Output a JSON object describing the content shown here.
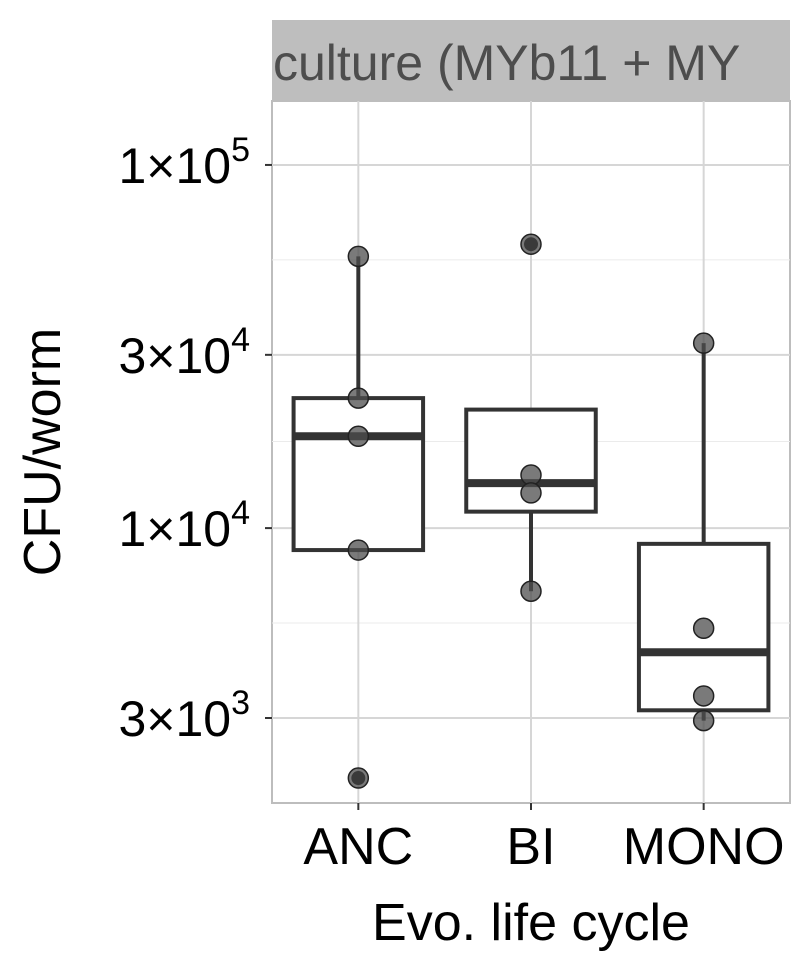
{
  "chart_data": {
    "type": "box",
    "facet_label": "culture (MYb11 + MY",
    "xlabel": "Evo. life cycle",
    "ylabel": "CFU/worm",
    "y_scale": "log10",
    "ylim": [
      1750,
      150000
    ],
    "y_ticks": [
      {
        "value": 3000,
        "mantissa": "3",
        "exponent": "3"
      },
      {
        "value": 10000,
        "mantissa": "1",
        "exponent": "4"
      },
      {
        "value": 30000,
        "mantissa": "3",
        "exponent": "4"
      },
      {
        "value": 100000,
        "mantissa": "1",
        "exponent": "5"
      }
    ],
    "grid": true,
    "categories": [
      "ANC",
      "BI",
      "MONO"
    ],
    "boxes": [
      {
        "category": "ANC",
        "whisker_low": 8700,
        "q1": 8700,
        "median": 17900,
        "q3": 22800,
        "whisker_high": 56000
      },
      {
        "category": "BI",
        "whisker_low": 6700,
        "q1": 11100,
        "median": 13300,
        "q3": 21200,
        "whisker_high": 21200
      },
      {
        "category": "MONO",
        "whisker_low": 2950,
        "q1": 3150,
        "median": 4550,
        "q3": 9050,
        "whisker_high": 32300
      }
    ],
    "outliers": [
      {
        "category": "ANC",
        "value": 2050
      },
      {
        "category": "BI",
        "value": 60500
      }
    ],
    "points": [
      {
        "category": "ANC",
        "value": 56000
      },
      {
        "category": "ANC",
        "value": 22800
      },
      {
        "category": "ANC",
        "value": 17900
      },
      {
        "category": "ANC",
        "value": 8700
      },
      {
        "category": "ANC",
        "value": 2050
      },
      {
        "category": "BI",
        "value": 60500
      },
      {
        "category": "BI",
        "value": 14000
      },
      {
        "category": "BI",
        "value": 12500
      },
      {
        "category": "BI",
        "value": 6700
      },
      {
        "category": "MONO",
        "value": 32300
      },
      {
        "category": "MONO",
        "value": 5300
      },
      {
        "category": "MONO",
        "value": 3450
      },
      {
        "category": "MONO",
        "value": 2950
      }
    ]
  }
}
